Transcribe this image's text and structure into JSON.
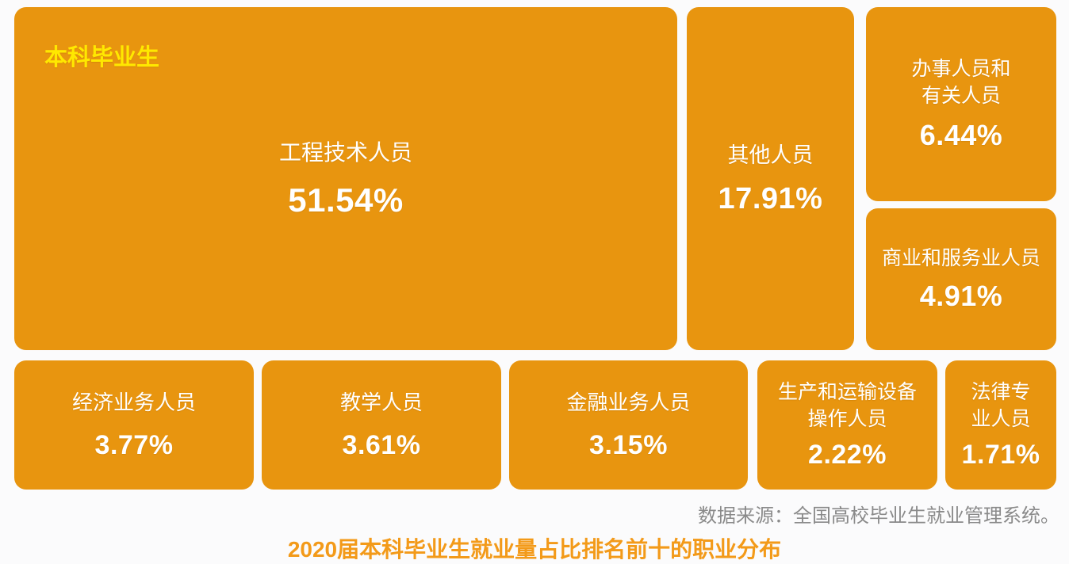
{
  "group_label": "本科毕业生",
  "source": "数据来源：全国高校毕业生就业管理系统。",
  "title": "2020届本科毕业生就业量占比排名前十的职业分布",
  "colors": {
    "tile_fill": "#e8950f",
    "tile_text": "#ffffff",
    "group_label": "#ffe800",
    "title": "#f39a19",
    "source_text": "#8a8a8a",
    "background": "#fbfbfc"
  },
  "tiles": [
    {
      "label": "工程技术人员",
      "value": "51.54%"
    },
    {
      "label": "其他人员",
      "value": "17.91%"
    },
    {
      "label": "办事人员和\n有关人员",
      "value": "6.44%"
    },
    {
      "label": "商业和服务业人员",
      "value": "4.91%"
    },
    {
      "label": "经济业务人员",
      "value": "3.77%"
    },
    {
      "label": "教学人员",
      "value": "3.61%"
    },
    {
      "label": "金融业务人员",
      "value": "3.15%"
    },
    {
      "label": "生产和运输设备\n操作人员",
      "value": "2.22%"
    },
    {
      "label": "法律专\n业人员",
      "value": "1.71%"
    }
  ],
  "chart_data": {
    "type": "treemap",
    "title": "2020届本科毕业生就业量占比排名前十的职业分布",
    "group": "本科毕业生",
    "categories": [
      "工程技术人员",
      "其他人员",
      "办事人员和有关人员",
      "商业和服务业人员",
      "经济业务人员",
      "教学人员",
      "金融业务人员",
      "生产和运输设备操作人员",
      "法律专业人员"
    ],
    "values": [
      51.54,
      17.91,
      6.44,
      4.91,
      3.77,
      3.61,
      3.15,
      2.22,
      1.71
    ],
    "unit": "%",
    "source": "数据来源：全国高校毕业生就业管理系统。",
    "legend_position": "none",
    "grid": false
  }
}
